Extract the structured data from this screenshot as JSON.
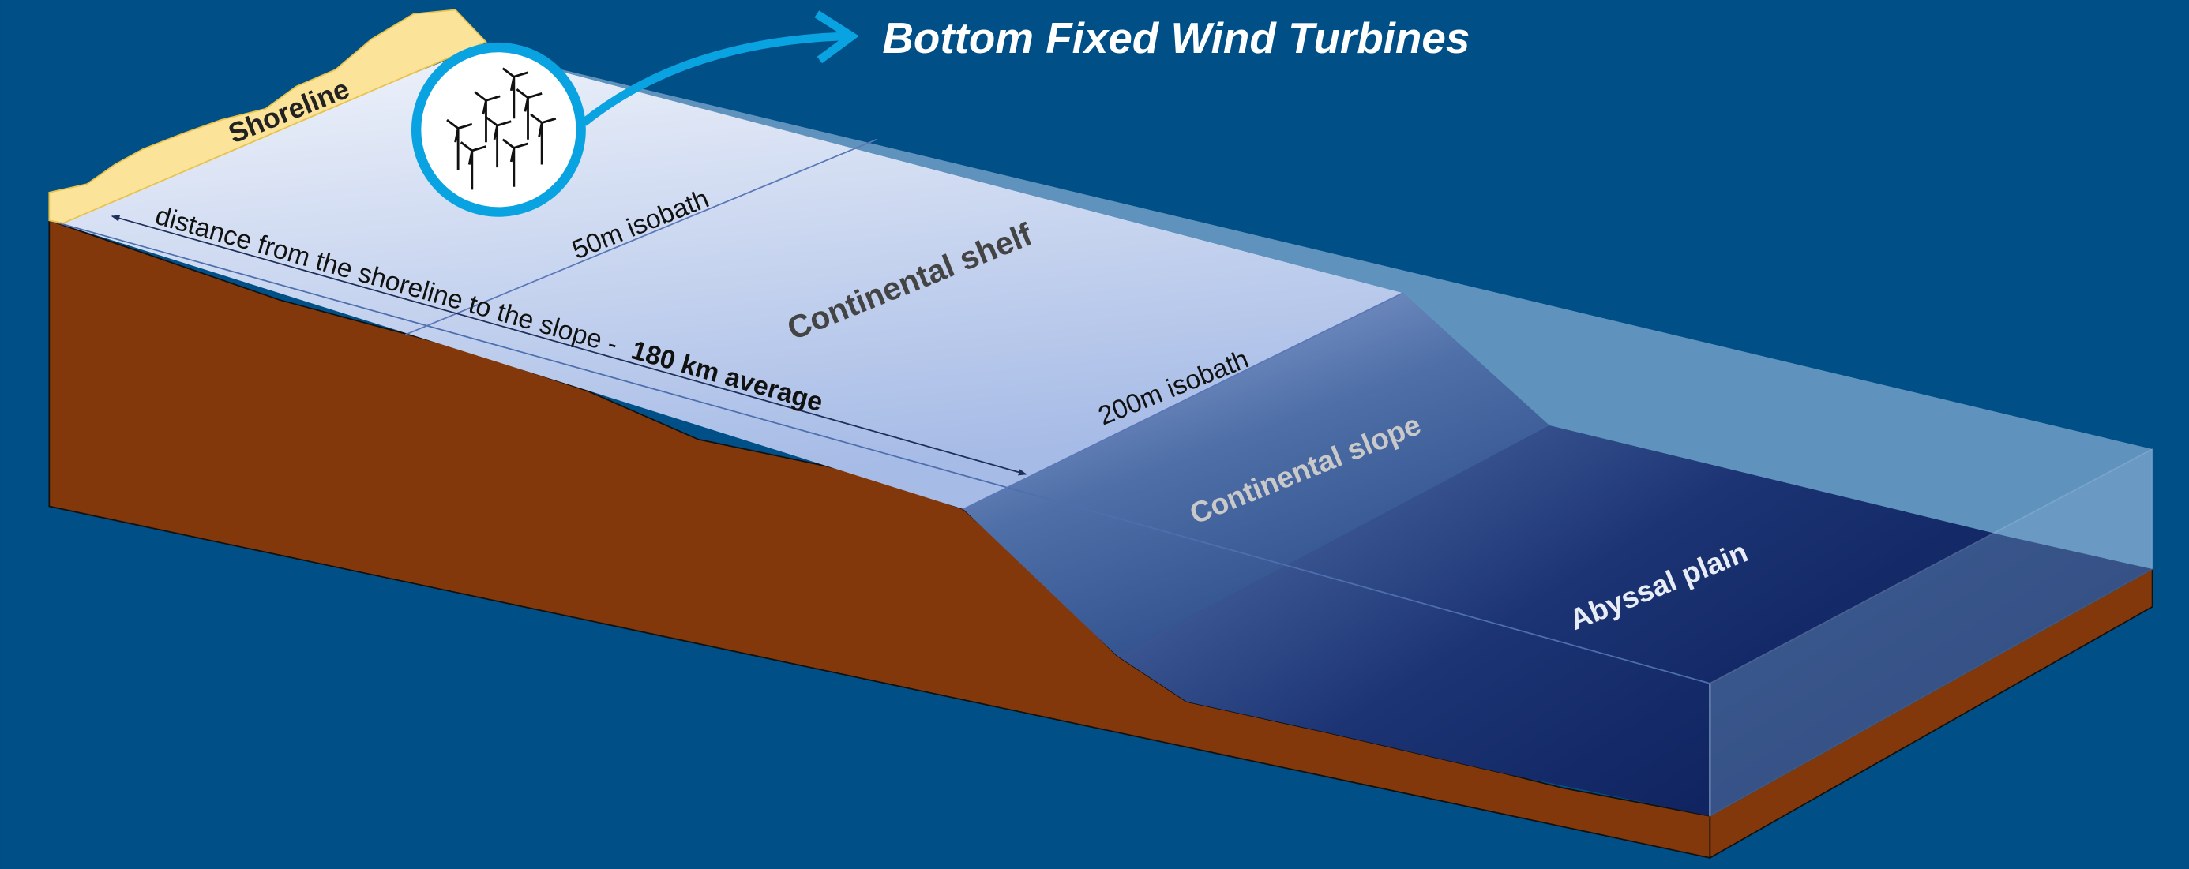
{
  "title": "Bottom Fixed Wind Turbines",
  "labels": {
    "shoreline": "Shoreline",
    "isobath_50": "50m isobath",
    "shelf": "Continental shelf",
    "isobath_200": "200m isobath",
    "slope": "Continental slope",
    "abyssal": "Abyssal plain"
  },
  "distance": {
    "text": "distance from the shoreline to the slope -",
    "emphasis": "180 km average"
  }
}
